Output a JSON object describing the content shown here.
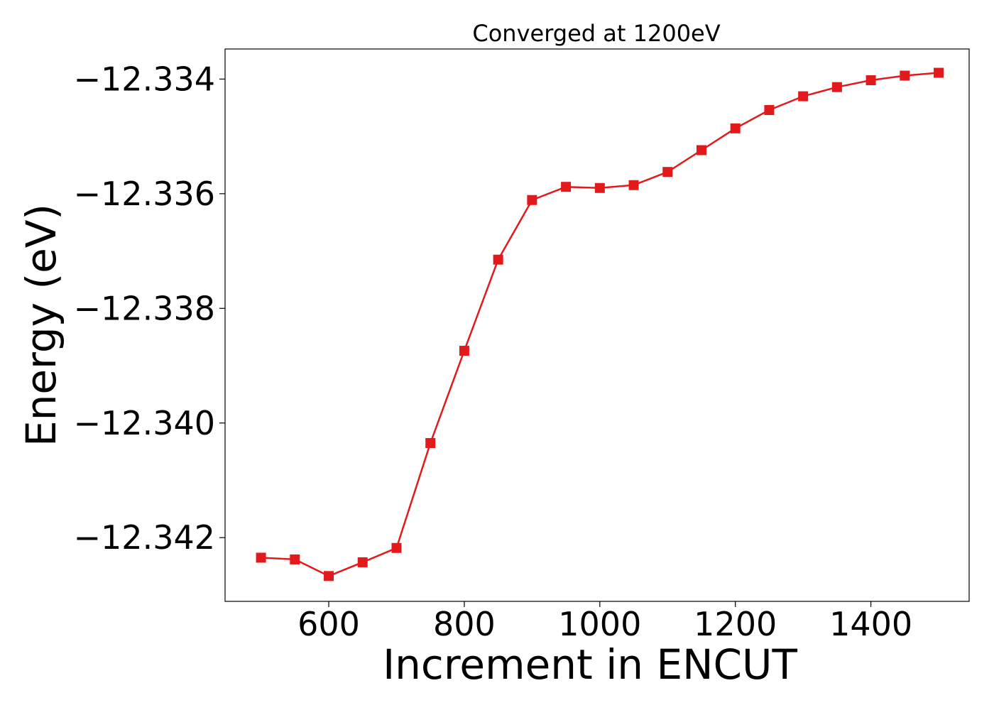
{
  "chart_data": {
    "type": "line",
    "title": "Converged at 1200eV",
    "xlabel": "Increment in ENCUT",
    "ylabel": "Energy (eV)",
    "xlim": [
      447,
      1545
    ],
    "ylim": [
      -12.343112,
      -12.333475
    ],
    "xticks": [
      600,
      800,
      1000,
      1200,
      1400
    ],
    "yticks": [
      -12.334,
      -12.336,
      -12.338,
      -12.34,
      -12.342
    ],
    "ytick_labels": [
      "−12.334",
      "−12.336",
      "−12.338",
      "−12.340",
      "−12.342"
    ],
    "grid": false,
    "legend": "none",
    "series": [
      {
        "color": "#e31a1c",
        "marker": "square",
        "x": [
          500,
          550,
          600,
          650,
          700,
          750,
          800,
          850,
          900,
          950,
          1000,
          1050,
          1100,
          1150,
          1200,
          1250,
          1300,
          1350,
          1400,
          1450,
          1500
        ],
        "y": [
          -12.34235,
          -12.34238,
          -12.34267,
          -12.34243,
          -12.34218,
          -12.34035,
          -12.33874,
          -12.33715,
          -12.33611,
          -12.33588,
          -12.3359,
          -12.33585,
          -12.33562,
          -12.33524,
          -12.33486,
          -12.33454,
          -12.3343,
          -12.33414,
          -12.33402,
          -12.33394,
          -12.33389
        ]
      }
    ]
  }
}
